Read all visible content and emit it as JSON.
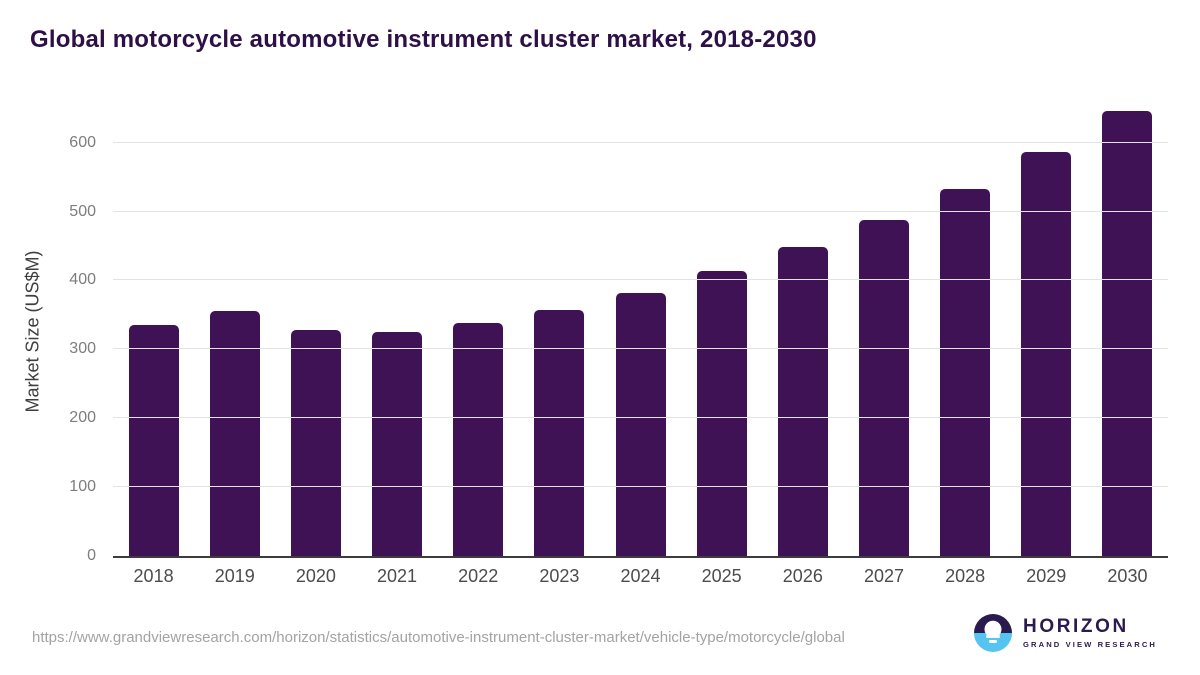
{
  "title": "Global motorcycle automotive instrument cluster market, 2018-2030",
  "chart_data": {
    "type": "bar",
    "title": "Global motorcycle automotive instrument cluster market, 2018-2030",
    "categories": [
      "2018",
      "2019",
      "2020",
      "2021",
      "2022",
      "2023",
      "2024",
      "2025",
      "2026",
      "2027",
      "2028",
      "2029",
      "2030"
    ],
    "values": [
      336,
      355,
      328,
      325,
      338,
      357,
      382,
      413,
      448,
      488,
      533,
      586,
      646
    ],
    "xlabel": "",
    "ylabel": "Market Size (US$M)",
    "ylim": [
      0,
      656
    ],
    "yticks": [
      0,
      100,
      200,
      300,
      400,
      500,
      600
    ],
    "grid": true,
    "legend": false,
    "bar_color": "#3e1254"
  },
  "colors": {
    "title": "#2d1046",
    "bar": "#3e1254",
    "gridline": "#e3e3e3",
    "axis_line": "#3c3c3c",
    "logo_purple": "#2b1a4e",
    "logo_blue": "#56c4f0"
  },
  "footer": {
    "source_url": "https://www.grandviewresearch.com/horizon/statistics/automotive-instrument-cluster-market/vehicle-type/motorcycle/global",
    "logo": {
      "name": "HORIZON",
      "subtitle": "GRAND VIEW RESEARCH"
    }
  }
}
